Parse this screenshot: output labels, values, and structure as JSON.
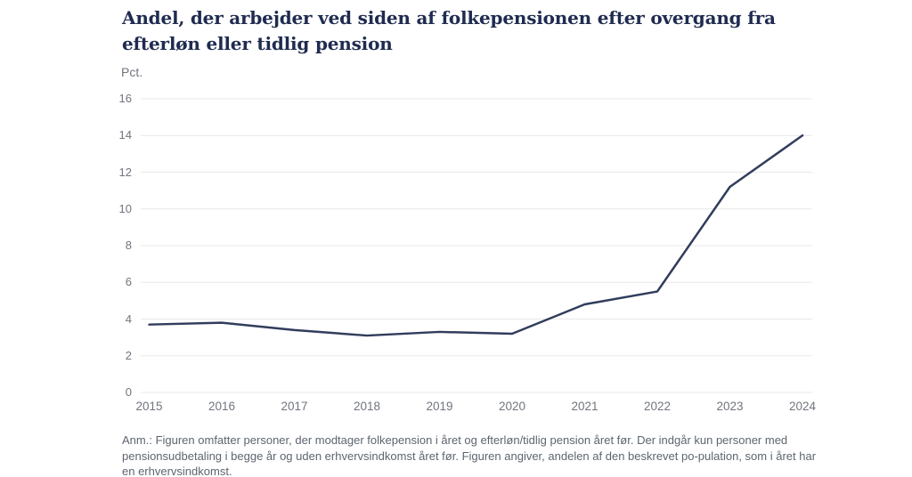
{
  "title": "Andel, der arbejder ved siden af folkepensionen efter overgang fra efterløn eller tidlig pension",
  "unit_label": "Pct.",
  "footnote": "Anm.: Figuren omfatter personer, der modtager folkepension i året og efterløn/tidlig pension året før. Der indgår kun personer med pensionsudbetaling i begge år og uden erhvervsindkomst året før. Figuren angiver, andelen af den beskrevet po-pulation, som i året har en erhvervsindkomst.",
  "colors": {
    "title": "#1f2b50",
    "line": "#313d5c",
    "tick": "#71757e",
    "grid": "#e9e9e9",
    "footnote": "#5d6570"
  },
  "chart_data": {
    "type": "line",
    "title": "Andel, der arbejder ved siden af folkepensionen efter overgang fra efterløn eller tidlig pension",
    "xlabel": "",
    "ylabel": "Pct.",
    "x": [
      2015,
      2016,
      2017,
      2018,
      2019,
      2020,
      2021,
      2022,
      2023,
      2024
    ],
    "values": [
      3.7,
      3.8,
      3.4,
      3.1,
      3.3,
      3.2,
      4.8,
      5.5,
      11.2,
      14.0
    ],
    "ylim": [
      0,
      16
    ],
    "yticks": [
      0,
      2,
      4,
      6,
      8,
      10,
      12,
      14,
      16
    ],
    "grid": true,
    "legend": false
  }
}
